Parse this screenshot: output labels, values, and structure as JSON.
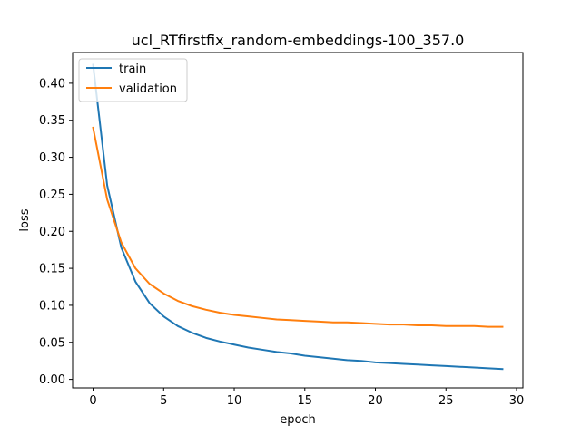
{
  "chart_data": {
    "type": "line",
    "title": "ucl_RTfirstfix_random-embeddings-100_357.0",
    "xlabel": "epoch",
    "ylabel": "loss",
    "xlim": [
      -1.45,
      30.45
    ],
    "ylim": [
      -0.0115,
      0.4415
    ],
    "xticks": [
      0,
      5,
      10,
      15,
      20,
      25,
      30
    ],
    "xtick_labels": [
      "0",
      "5",
      "10",
      "15",
      "20",
      "25",
      "30"
    ],
    "yticks": [
      0.0,
      0.05,
      0.1,
      0.15,
      0.2,
      0.25,
      0.3,
      0.35,
      0.4
    ],
    "ytick_labels": [
      "0.00",
      "0.05",
      "0.10",
      "0.15",
      "0.20",
      "0.25",
      "0.30",
      "0.35",
      "0.40"
    ],
    "grid": false,
    "legend_position": "upper-left",
    "x": [
      0,
      1,
      2,
      3,
      4,
      5,
      6,
      7,
      8,
      9,
      10,
      11,
      12,
      13,
      14,
      15,
      16,
      17,
      18,
      19,
      20,
      21,
      22,
      23,
      24,
      25,
      26,
      27,
      28,
      29
    ],
    "series": [
      {
        "name": "train",
        "color": "#1f77b4",
        "values": [
          0.425,
          0.262,
          0.178,
          0.132,
          0.103,
          0.085,
          0.072,
          0.063,
          0.056,
          0.051,
          0.047,
          0.043,
          0.04,
          0.037,
          0.035,
          0.032,
          0.03,
          0.028,
          0.026,
          0.025,
          0.023,
          0.022,
          0.021,
          0.02,
          0.019,
          0.018,
          0.017,
          0.016,
          0.015,
          0.014
        ]
      },
      {
        "name": "validation",
        "color": "#ff7f0e",
        "values": [
          0.34,
          0.243,
          0.185,
          0.15,
          0.129,
          0.116,
          0.106,
          0.099,
          0.094,
          0.09,
          0.087,
          0.085,
          0.083,
          0.081,
          0.08,
          0.079,
          0.078,
          0.077,
          0.077,
          0.076,
          0.075,
          0.074,
          0.074,
          0.073,
          0.073,
          0.072,
          0.072,
          0.072,
          0.071,
          0.071
        ]
      }
    ]
  }
}
